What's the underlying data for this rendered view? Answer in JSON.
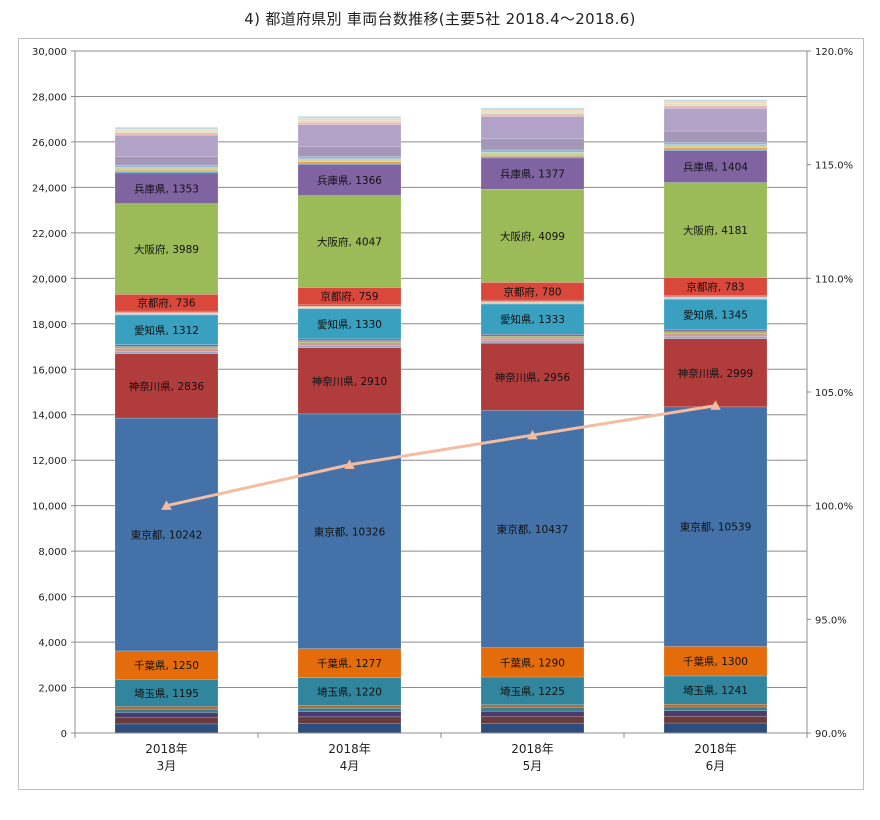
{
  "title": "4) 都道府県別 車両台数推移(主要5社 2018.4～2018.6)",
  "chart_data": {
    "type": "bar",
    "stacked": true,
    "categories": [
      {
        "year": "2018年",
        "month": "3月"
      },
      {
        "year": "2018年",
        "month": "4月"
      },
      {
        "year": "2018年",
        "month": "5月"
      },
      {
        "year": "2018年",
        "month": "6月"
      }
    ],
    "ylim": [
      0,
      30000
    ],
    "yticks": [
      "0",
      "2,000",
      "4,000",
      "6,000",
      "8,000",
      "10,000",
      "12,000",
      "14,000",
      "16,000",
      "18,000",
      "20,000",
      "22,000",
      "24,000",
      "26,000",
      "28,000",
      "30,000"
    ],
    "y2lim": [
      90,
      120
    ],
    "y2ticks": [
      "90.0%",
      "95.0%",
      "100.0%",
      "105.0%",
      "110.0%",
      "115.0%",
      "120.0%"
    ],
    "grid": true,
    "series": [
      {
        "name": "",
        "values": [
          400,
          420,
          430,
          440
        ],
        "color": "#2d4d7c",
        "labeled": false
      },
      {
        "name": "",
        "values": [
          280,
          290,
          295,
          300
        ],
        "color": "#6a3b3b",
        "labeled": false
      },
      {
        "name": "",
        "values": [
          220,
          230,
          235,
          240
        ],
        "color": "#4b3a6e",
        "labeled": false
      },
      {
        "name": "",
        "values": [
          150,
          155,
          160,
          165
        ],
        "color": "#3b7f8f",
        "labeled": false
      },
      {
        "name": "",
        "values": [
          115,
          118,
          120,
          122
        ],
        "color": "#b46a2e",
        "labeled": false
      },
      {
        "name": "埼玉県",
        "values": [
          1195,
          1220,
          1225,
          1241
        ],
        "color": "#31859c",
        "labeled": true
      },
      {
        "name": "千葉県",
        "values": [
          1250,
          1277,
          1290,
          1300
        ],
        "color": "#e46c0a",
        "labeled": true
      },
      {
        "name": "東京都",
        "values": [
          10242,
          10326,
          10437,
          10539
        ],
        "color": "#4472a8",
        "labeled": true
      },
      {
        "name": "神奈川県",
        "values": [
          2836,
          2910,
          2956,
          2999
        ],
        "color": "#b03c3c",
        "labeled": true
      },
      {
        "name": "",
        "values": [
          100,
          100,
          100,
          100
        ],
        "color": "#93a9cc",
        "labeled": false
      },
      {
        "name": "",
        "values": [
          120,
          120,
          120,
          120
        ],
        "color": "#d99694",
        "labeled": false
      },
      {
        "name": "",
        "values": [
          90,
          90,
          90,
          90
        ],
        "color": "#9bbb59",
        "labeled": false
      },
      {
        "name": "",
        "values": [
          80,
          80,
          80,
          80
        ],
        "color": "#8064a2",
        "labeled": false
      },
      {
        "name": "愛知県",
        "values": [
          1312,
          1330,
          1333,
          1345
        ],
        "color": "#3aa0c0",
        "labeled": true
      },
      {
        "name": "",
        "values": [
          60,
          60,
          60,
          60
        ],
        "color": "#b9cde5",
        "labeled": false
      },
      {
        "name": "",
        "values": [
          50,
          50,
          50,
          50
        ],
        "color": "#fac090",
        "labeled": false
      },
      {
        "name": "",
        "values": [
          60,
          60,
          60,
          60
        ],
        "color": "#c0504d",
        "labeled": false
      },
      {
        "name": "京都府",
        "values": [
          736,
          759,
          780,
          783
        ],
        "color": "#d9483b",
        "labeled": true
      },
      {
        "name": "大阪府",
        "values": [
          3989,
          4047,
          4099,
          4181
        ],
        "color": "#9bbb59",
        "labeled": true
      },
      {
        "name": "兵庫県",
        "values": [
          1353,
          1366,
          1377,
          1404
        ],
        "color": "#8064a2",
        "labeled": true
      },
      {
        "name": "",
        "values": [
          60,
          60,
          60,
          60
        ],
        "color": "#4bacc6",
        "labeled": false
      },
      {
        "name": "",
        "values": [
          60,
          60,
          60,
          60
        ],
        "color": "#f79646",
        "labeled": false
      },
      {
        "name": "",
        "values": [
          120,
          130,
          130,
          140
        ],
        "color": "#c3d69b",
        "labeled": false
      },
      {
        "name": "",
        "values": [
          100,
          100,
          100,
          100
        ],
        "color": "#95b3d7",
        "labeled": false
      },
      {
        "name": "",
        "values": [
          380,
          440,
          490,
          500
        ],
        "color": "#a597b8",
        "labeled": false
      },
      {
        "name": "",
        "values": [
          940,
          960,
          980,
          1000
        ],
        "color": "#b3a2c7",
        "labeled": false
      },
      {
        "name": "",
        "values": [
          100,
          110,
          110,
          110
        ],
        "color": "#e6b9b8",
        "labeled": false
      },
      {
        "name": "",
        "values": [
          80,
          80,
          90,
          90
        ],
        "color": "#d7e4bd",
        "labeled": false
      },
      {
        "name": "",
        "values": [
          80,
          90,
          90,
          90
        ],
        "color": "#fcd5b5",
        "labeled": false
      },
      {
        "name": "",
        "values": [
          90,
          90,
          90,
          90
        ],
        "color": "#b7dee8",
        "labeled": false
      }
    ],
    "growth_line": {
      "values": [
        100.0,
        101.8,
        103.1,
        104.4
      ],
      "color": "#f4bca0",
      "axis": "right"
    }
  }
}
